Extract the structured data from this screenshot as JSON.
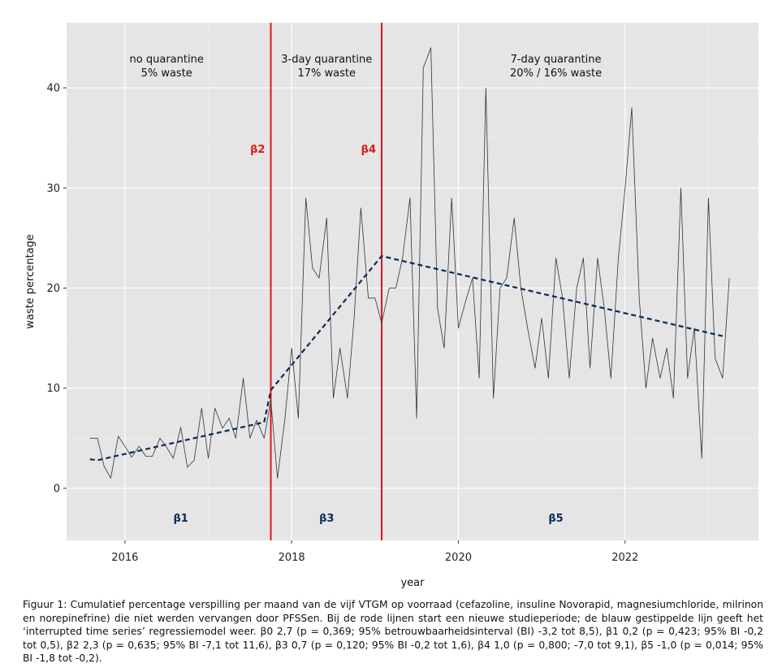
{
  "colors": {
    "panel": "#e5e5e5",
    "grid_major": "#ffffff",
    "grid_minor": "#f0f0f0",
    "period_line": "#d7191c",
    "regression_line": "#0b2a55",
    "data_line": "#333333",
    "beta_red": "#d7191c",
    "beta_blue": "#0b2a55"
  },
  "chart_data": {
    "type": "line",
    "xlabel": "year",
    "ylabel": "waste percentage",
    "xlim": [
      2015.3,
      2023.6
    ],
    "ylim": [
      -5.2,
      46.5
    ],
    "grid": true,
    "x_ticks": [
      2016,
      2018,
      2020,
      2022
    ],
    "y_ticks": [
      0,
      10,
      20,
      30,
      40
    ],
    "series": [
      {
        "style": "thin solid line",
        "points": [
          [
            2015.58,
            5
          ],
          [
            2015.67,
            5
          ],
          [
            2015.75,
            2.2
          ],
          [
            2015.83,
            1
          ],
          [
            2015.92,
            5.2
          ],
          [
            2016.0,
            4.2
          ],
          [
            2016.08,
            3.1
          ],
          [
            2016.17,
            4.2
          ],
          [
            2016.25,
            3.2
          ],
          [
            2016.33,
            3.2
          ],
          [
            2016.42,
            5
          ],
          [
            2016.5,
            4.1
          ],
          [
            2016.58,
            3
          ],
          [
            2016.67,
            6.1
          ],
          [
            2016.75,
            2.1
          ],
          [
            2016.83,
            2.8
          ],
          [
            2016.92,
            8
          ],
          [
            2017.0,
            3
          ],
          [
            2017.08,
            8
          ],
          [
            2017.17,
            6
          ],
          [
            2017.25,
            7
          ],
          [
            2017.33,
            5
          ],
          [
            2017.42,
            11
          ],
          [
            2017.5,
            5
          ],
          [
            2017.58,
            6.8
          ],
          [
            2017.67,
            5
          ],
          [
            2017.75,
            8.8
          ],
          [
            2017.83,
            1
          ],
          [
            2017.92,
            7
          ],
          [
            2018.0,
            14
          ],
          [
            2018.08,
            7
          ],
          [
            2018.17,
            29
          ],
          [
            2018.25,
            22
          ],
          [
            2018.33,
            21
          ],
          [
            2018.42,
            27
          ],
          [
            2018.5,
            9
          ],
          [
            2018.58,
            14
          ],
          [
            2018.67,
            9
          ],
          [
            2018.75,
            17
          ],
          [
            2018.83,
            28
          ],
          [
            2018.92,
            19
          ],
          [
            2019.0,
            19
          ],
          [
            2019.08,
            16.5
          ],
          [
            2019.17,
            20
          ],
          [
            2019.25,
            20
          ],
          [
            2019.33,
            23
          ],
          [
            2019.42,
            29
          ],
          [
            2019.5,
            7
          ],
          [
            2019.58,
            42
          ],
          [
            2019.67,
            44
          ],
          [
            2019.75,
            18
          ],
          [
            2019.83,
            14
          ],
          [
            2019.92,
            29
          ],
          [
            2020.0,
            16
          ],
          [
            2020.08,
            18.5
          ],
          [
            2020.17,
            21
          ],
          [
            2020.25,
            11
          ],
          [
            2020.33,
            40
          ],
          [
            2020.42,
            9
          ],
          [
            2020.5,
            20
          ],
          [
            2020.58,
            21
          ],
          [
            2020.67,
            27
          ],
          [
            2020.75,
            20
          ],
          [
            2020.83,
            16
          ],
          [
            2020.92,
            12
          ],
          [
            2021.0,
            17
          ],
          [
            2021.08,
            11
          ],
          [
            2021.17,
            23
          ],
          [
            2021.25,
            19
          ],
          [
            2021.33,
            11
          ],
          [
            2021.42,
            20
          ],
          [
            2021.5,
            23
          ],
          [
            2021.58,
            12
          ],
          [
            2021.67,
            23
          ],
          [
            2021.75,
            18
          ],
          [
            2021.83,
            11
          ],
          [
            2021.92,
            23
          ],
          [
            2022.0,
            30
          ],
          [
            2022.08,
            38
          ],
          [
            2022.17,
            19
          ],
          [
            2022.25,
            10
          ],
          [
            2022.33,
            15
          ],
          [
            2022.42,
            11
          ],
          [
            2022.5,
            14
          ],
          [
            2022.58,
            9
          ],
          [
            2022.67,
            30
          ],
          [
            2022.75,
            11
          ],
          [
            2022.83,
            16
          ],
          [
            2022.92,
            3
          ],
          [
            2023.0,
            29
          ],
          [
            2023.08,
            13
          ],
          [
            2023.17,
            11
          ],
          [
            2023.25,
            21
          ]
        ]
      },
      {
        "style": "dashed regression line",
        "points": [
          [
            2015.58,
            2.9
          ],
          [
            2015.67,
            2.8
          ],
          [
            2017.67,
            6.6
          ],
          [
            2017.75,
            9.8
          ],
          [
            2019.08,
            23.2
          ],
          [
            2023.17,
            15.2
          ]
        ]
      }
    ],
    "vertical_lines": [
      {
        "x": 2017.75,
        "label": "β2"
      },
      {
        "x": 2019.08,
        "label": "β4"
      }
    ],
    "period_annotations": [
      {
        "x": 2016.5,
        "line1": "no quarantine",
        "line2": "5% waste"
      },
      {
        "x": 2018.42,
        "line1": "3-day quarantine",
        "line2": "17% waste"
      },
      {
        "x": 2021.17,
        "line1": "7-day quarantine",
        "line2": "20% / 16% waste"
      }
    ],
    "segment_labels": [
      {
        "x": 2016.67,
        "label": "β1"
      },
      {
        "x": 2018.42,
        "label": "β3"
      },
      {
        "x": 2021.17,
        "label": "β5"
      }
    ]
  },
  "caption": "Figuur 1: Cumulatief percentage verspilling per maand van de vijf VTGM op voorraad (cefazoline, insuline Novorapid, magnesiumchloride, milrinon en norepinefrine) die niet werden vervangen door PFSSen. Bij de rode lijnen start een nieuwe studieperiode; de blauw gestippelde lijn geeft het ‘interrupted time series’ regressiemodel weer. β0 2,7 (p = 0,369; 95% betrouwbaarheidsinterval (BI) -3,2 tot 8,5), β1 0,2 (p = 0,423; 95% BI -0,2 tot 0,5), β2 2,3 (p = 0,635; 95% BI -7,1 tot 11,6), β3 0,7 (p = 0,120; 95% BI -0,2 tot 1,6), β4 1,0 (p = 0,800; -7,0 tot 9,1), β5 -1,0 (p = 0,014; 95% BI -1,8 tot -0,2)."
}
